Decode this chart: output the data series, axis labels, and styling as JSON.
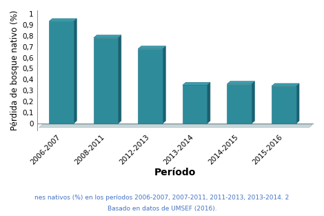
{
  "categories": [
    "2006-2007",
    "2008-2011",
    "2012-2013",
    "2013-2014",
    "2014-2015",
    "2015-2016"
  ],
  "values": [
    0.93,
    0.78,
    0.68,
    0.35,
    0.36,
    0.34
  ],
  "bar_color": "#2e8b9a",
  "bar_edge_color": "#1e6b7a",
  "bar_top_color": "#3a9dae",
  "bar_side_color": "#1a6070",
  "floor_color": "#c8d8dc",
  "floor_edge_color": "#a0b8be",
  "xlabel": "Período",
  "ylabel": "Pérdida de bosque nativo (%)",
  "ylim": [
    0,
    1.0
  ],
  "yticks": [
    0,
    0.1,
    0.2,
    0.3,
    0.4,
    0.5,
    0.6,
    0.7,
    0.8,
    0.9,
    1
  ],
  "ytick_labels": [
    "0",
    "0,1",
    "0,2",
    "0,3",
    "0,4",
    "0,5",
    "0,6",
    "0,7",
    "0,8",
    "0,9",
    "1"
  ],
  "xlabel_fontsize": 10,
  "ylabel_fontsize": 8.5,
  "tick_fontsize": 7.5,
  "caption_line1": "nes nativos (%) en los períodos 2006-2007, 2007-2011, 2011-2013, 2013-2014. 2",
  "caption_line2": "Basado en datos de UMSEF (2016).",
  "caption_color": "#4472c4",
  "background_color": "#ffffff"
}
